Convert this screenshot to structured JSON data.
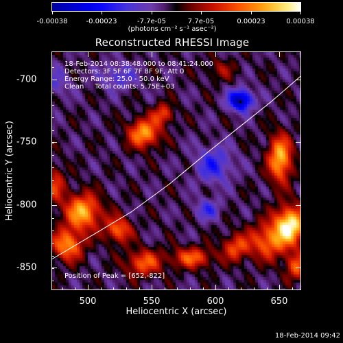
{
  "colorbar": {
    "labels": [
      "-0.00038",
      "-0.00023",
      "-7.7e-05",
      "7.7e-05",
      "0.00023",
      "0.00038"
    ],
    "units": "(photons cm⁻² s⁻¹ asec⁻²)"
  },
  "title": "Reconstructed RHESSI Image",
  "info": {
    "time_range": "18-Feb-2014 08:38:48.000 to 08:41:24.000",
    "detectors": "Detectors: 3F 5F 6F 7F 8F 9F, Att 0",
    "energy": "Energy Range: 25.0 - 50.0 keV",
    "clean": "Clean     Total counts: 5.75E+03",
    "peak": "Position of Peak = [652,-822]"
  },
  "axes": {
    "xlabel": "Heliocentric X (arcsec)",
    "ylabel": "Heliocentric Y (arcsec)",
    "xticks": [
      "500",
      "550",
      "600",
      "650"
    ],
    "yticks": [
      "-700",
      "-750",
      "-800",
      "-850"
    ]
  },
  "timestamp": "18-Feb-2014 09:42",
  "chart_data": {
    "type": "heatmap",
    "title": "Reconstructed RHESSI Image",
    "xlabel": "Heliocentric X (arcsec)",
    "ylabel": "Heliocentric Y (arcsec)",
    "xlim": [
      468,
      663
    ],
    "ylim": [
      -873,
      -686
    ],
    "colorbar_range": [
      -0.00038,
      0.00038
    ],
    "peak_position": [
      652,
      -822
    ],
    "limb_curve": {
      "x": [
        468,
        500,
        530,
        560,
        590,
        615,
        640,
        663
      ],
      "y": [
        -849,
        -830,
        -812,
        -790,
        -765,
        -745,
        -725,
        -705
      ]
    }
  }
}
